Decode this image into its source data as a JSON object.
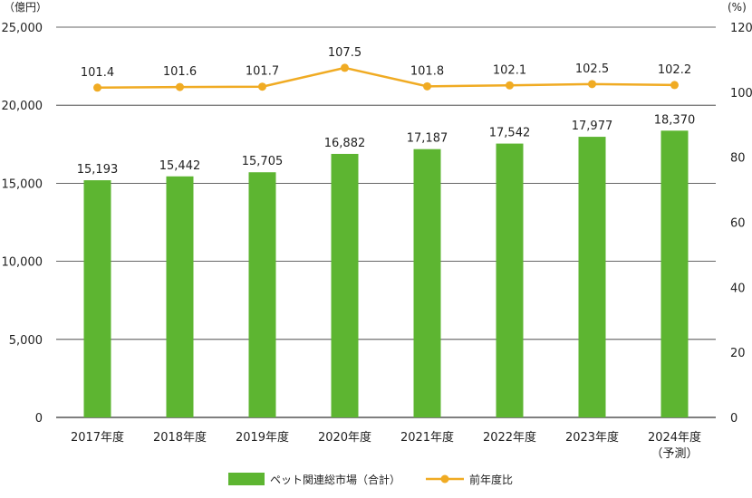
{
  "chart_data": {
    "type": "bar",
    "categories": [
      "2017年度",
      "2018年度",
      "2019年度",
      "2020年度",
      "2021年度",
      "2022年度",
      "2023年度",
      "2024年度"
    ],
    "category_sublabels": [
      "",
      "",
      "",
      "",
      "",
      "",
      "",
      "（予測）"
    ],
    "series": [
      {
        "name": "ペット関連総市場（合計）",
        "type": "bar",
        "axis": "left",
        "color": "#5db531",
        "values": [
          15193,
          15442,
          15705,
          16882,
          17187,
          17542,
          17977,
          18370
        ],
        "value_labels": [
          "15,193",
          "15,442",
          "15,705",
          "16,882",
          "17,187",
          "17,542",
          "17,977",
          "18,370"
        ]
      },
      {
        "name": "前年度比",
        "type": "line",
        "axis": "right",
        "color": "#f0ab23",
        "values": [
          101.4,
          101.6,
          101.7,
          107.5,
          101.8,
          102.1,
          102.5,
          102.2
        ],
        "value_labels": [
          "101.4",
          "101.6",
          "101.7",
          "107.5",
          "101.8",
          "102.1",
          "102.5",
          "102.2"
        ]
      }
    ],
    "y_left": {
      "unit": "（億円）",
      "ylim": [
        0,
        25000
      ],
      "ticks": [
        0,
        5000,
        10000,
        15000,
        20000,
        25000
      ],
      "tick_labels": [
        "0",
        "5,000",
        "10,000",
        "15,000",
        "20,000",
        "25,000"
      ]
    },
    "y_right": {
      "unit": "(%)",
      "ylim": [
        0,
        120
      ],
      "ticks": [
        0,
        20,
        40,
        60,
        80,
        100,
        120
      ],
      "tick_labels": [
        "0",
        "20",
        "40",
        "60",
        "80",
        "100",
        "120"
      ]
    },
    "grid": true,
    "legend_position": "bottom-center"
  }
}
